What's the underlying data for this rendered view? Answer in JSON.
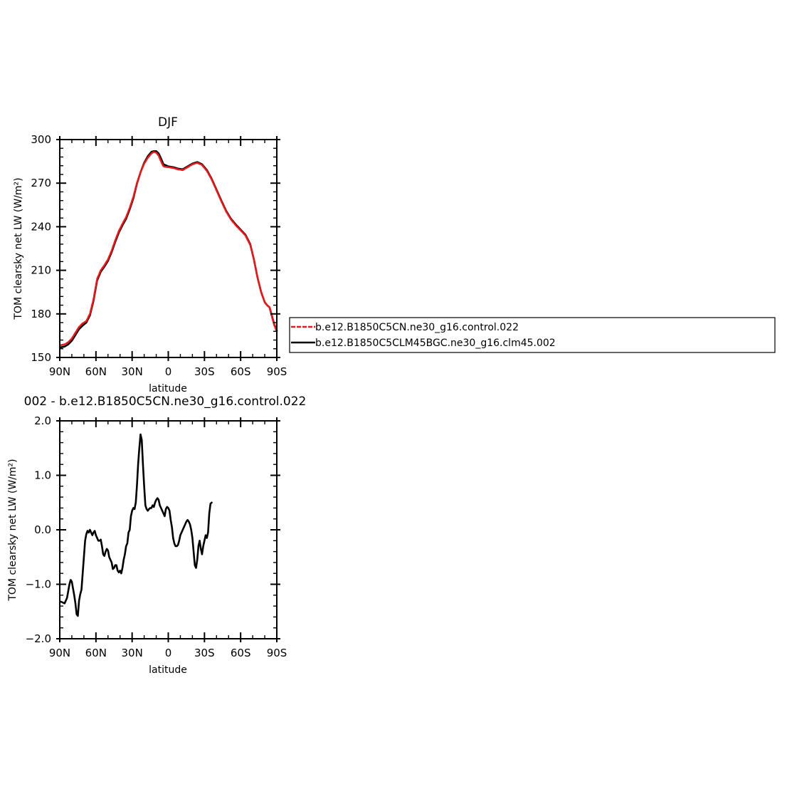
{
  "chart_data": [
    {
      "type": "line",
      "title": "DJF",
      "xlabel": "latitude",
      "ylabel": "TOM clearsky net LW (W/m²)",
      "xlim": [
        90,
        -90
      ],
      "ylim": [
        150,
        300
      ],
      "x_ticks": [
        90,
        60,
        30,
        0,
        -30,
        -60,
        -90
      ],
      "x_tick_labels": [
        "90N",
        "60N",
        "30N",
        "0",
        "30S",
        "60S",
        "90S"
      ],
      "y_ticks": [
        150,
        180,
        210,
        240,
        270,
        300
      ],
      "y_tick_labels": [
        "150",
        "180",
        "210",
        "240",
        "270",
        "300"
      ],
      "legend_position": "right",
      "series": [
        {
          "name": "b.e12.B1850C5CN.ne30_g16.control.022",
          "color": "#e8191c",
          "dash": "dashed",
          "points": [
            [
              89,
              158.5
            ],
            [
              86,
              159
            ],
            [
              83,
              160.5
            ],
            [
              80,
              163
            ],
            [
              77,
              167
            ],
            [
              74,
              171
            ],
            [
              71,
              173.5
            ],
            [
              68,
              175
            ],
            [
              65,
              180
            ],
            [
              62,
              190
            ],
            [
              59,
              204
            ],
            [
              56,
              210
            ],
            [
              53,
              213.5
            ],
            [
              50,
              217.5
            ],
            [
              47,
              223.5
            ],
            [
              44,
              230.5
            ],
            [
              41,
              237
            ],
            [
              38,
              242
            ],
            [
              35,
              246.5
            ],
            [
              32,
              253
            ],
            [
              29,
              260.5
            ],
            [
              26,
              270
            ],
            [
              23,
              277.5
            ],
            [
              20,
              283.5
            ],
            [
              17,
              287.5
            ],
            [
              14,
              290.5
            ],
            [
              12,
              291.5
            ],
            [
              10,
              291
            ],
            [
              8,
              289
            ],
            [
              6,
              285
            ],
            [
              4,
              281.5
            ],
            [
              0,
              281
            ],
            [
              -4,
              280.5
            ],
            [
              -8,
              279.5
            ],
            [
              -12,
              279
            ],
            [
              -16,
              281
            ],
            [
              -20,
              283
            ],
            [
              -24,
              284
            ],
            [
              -28,
              282.5
            ],
            [
              -32,
              278.5
            ],
            [
              -36,
              272.5
            ],
            [
              -40,
              265
            ],
            [
              -44,
              257.5
            ],
            [
              -48,
              250.5
            ],
            [
              -52,
              245
            ],
            [
              -56,
              241
            ],
            [
              -60,
              237.5
            ],
            [
              -64,
              234
            ],
            [
              -68,
              227.5
            ],
            [
              -71,
              217.5
            ],
            [
              -74,
              205
            ],
            [
              -77,
              195
            ],
            [
              -80,
              188
            ],
            [
              -82,
              186
            ],
            [
              -84,
              184.5
            ],
            [
              -86,
              178
            ],
            [
              -88,
              172
            ],
            [
              -90,
              168
            ]
          ]
        },
        {
          "name": "b.e12.B1850C5CLM45BGC.ne30_g16.clm45.002",
          "color": "#000000",
          "dash": "solid",
          "points": [
            [
              89,
              157
            ],
            [
              86,
              157.5
            ],
            [
              83,
              159
            ],
            [
              80,
              161.5
            ],
            [
              77,
              165.5
            ],
            [
              74,
              169.5
            ],
            [
              71,
              172
            ],
            [
              68,
              174
            ],
            [
              65,
              179
            ],
            [
              62,
              189
            ],
            [
              59,
              203
            ],
            [
              56,
              209
            ],
            [
              53,
              212.5
            ],
            [
              50,
              216.5
            ],
            [
              47,
              222.5
            ],
            [
              44,
              229.5
            ],
            [
              41,
              236
            ],
            [
              38,
              241
            ],
            [
              35,
              245.5
            ],
            [
              32,
              252
            ],
            [
              29,
              259.5
            ],
            [
              26,
              269.5
            ],
            [
              23,
              277.5
            ],
            [
              20,
              284
            ],
            [
              17,
              288.5
            ],
            [
              14,
              291.5
            ],
            [
              12,
              292
            ],
            [
              10,
              292
            ],
            [
              8,
              290.5
            ],
            [
              6,
              287
            ],
            [
              4,
              283
            ],
            [
              0,
              281.5
            ],
            [
              -4,
              281
            ],
            [
              -8,
              280
            ],
            [
              -12,
              279.5
            ],
            [
              -16,
              281.5
            ],
            [
              -20,
              283.5
            ],
            [
              -24,
              284.5
            ],
            [
              -28,
              283
            ],
            [
              -32,
              279
            ],
            [
              -36,
              273
            ],
            [
              -40,
              265.5
            ],
            [
              -44,
              258
            ],
            [
              -48,
              251
            ],
            [
              -52,
              245.5
            ],
            [
              -56,
              241.5
            ],
            [
              -60,
              238
            ],
            [
              -64,
              234.5
            ],
            [
              -68,
              228
            ],
            [
              -71,
              217.5
            ],
            [
              -74,
              205
            ],
            [
              -77,
              195
            ],
            [
              -80,
              188
            ],
            [
              -82,
              186
            ],
            [
              -84,
              184.5
            ],
            [
              -86,
              178.5
            ],
            [
              -88,
              172.5
            ],
            [
              -90,
              168.5
            ]
          ]
        }
      ]
    },
    {
      "type": "line",
      "title": "002 - b.e12.B1850C5CN.ne30_g16.control.022",
      "xlabel": "latitude",
      "ylabel": "TOM clearsky net LW (W/m²)",
      "xlim": [
        90,
        -90
      ],
      "ylim": [
        -2.0,
        2.0
      ],
      "x_ticks": [
        90,
        60,
        30,
        0,
        -30,
        -60,
        -90
      ],
      "x_tick_labels": [
        "90N",
        "60N",
        "30N",
        "0",
        "30S",
        "60S",
        "90S"
      ],
      "y_ticks": [
        -2.0,
        -1.0,
        0.0,
        1.0,
        2.0
      ],
      "y_tick_labels": [
        "−2.0",
        "−1.0",
        "0.0",
        "1.0",
        "2.0"
      ],
      "series": [
        {
          "color": "#000000",
          "points": [
            [
              89,
              -1.32
            ],
            [
              86,
              -1.35
            ],
            [
              84,
              -1.25
            ],
            [
              82,
              -1.0
            ],
            [
              81,
              -0.92
            ],
            [
              80,
              -0.95
            ],
            [
              78,
              -1.2
            ],
            [
              77,
              -1.35
            ],
            [
              76,
              -1.55
            ],
            [
              75,
              -1.58
            ],
            [
              74,
              -1.3
            ],
            [
              73,
              -1.18
            ],
            [
              72,
              -1.1
            ],
            [
              71,
              -0.8
            ],
            [
              70,
              -0.5
            ],
            [
              69,
              -0.2
            ],
            [
              68,
              -0.08
            ],
            [
              67,
              -0.02
            ],
            [
              66,
              -0.05
            ],
            [
              65,
              0.0
            ],
            [
              64,
              -0.05
            ],
            [
              63,
              -0.1
            ],
            [
              62,
              -0.05
            ],
            [
              61,
              -0.02
            ],
            [
              60,
              -0.1
            ],
            [
              59,
              -0.15
            ],
            [
              58,
              -0.2
            ],
            [
              57,
              -0.2
            ],
            [
              56,
              -0.18
            ],
            [
              55,
              -0.3
            ],
            [
              54,
              -0.45
            ],
            [
              53,
              -0.48
            ],
            [
              52,
              -0.4
            ],
            [
              51,
              -0.35
            ],
            [
              50,
              -0.38
            ],
            [
              49,
              -0.5
            ],
            [
              48,
              -0.55
            ],
            [
              47,
              -0.6
            ],
            [
              46,
              -0.72
            ],
            [
              45,
              -0.7
            ],
            [
              44,
              -0.65
            ],
            [
              43,
              -0.65
            ],
            [
              42,
              -0.75
            ],
            [
              41,
              -0.78
            ],
            [
              40,
              -0.75
            ],
            [
              39,
              -0.8
            ],
            [
              38,
              -0.7
            ],
            [
              37,
              -0.55
            ],
            [
              36,
              -0.45
            ],
            [
              35,
              -0.3
            ],
            [
              34,
              -0.25
            ],
            [
              33,
              -0.05
            ],
            [
              32,
              0.0
            ],
            [
              31,
              0.25
            ],
            [
              30,
              0.35
            ],
            [
              29,
              0.4
            ],
            [
              28,
              0.38
            ],
            [
              27,
              0.5
            ],
            [
              26,
              0.8
            ],
            [
              25,
              1.2
            ],
            [
              24,
              1.5
            ],
            [
              23,
              1.75
            ],
            [
              22,
              1.65
            ],
            [
              21,
              1.2
            ],
            [
              20,
              0.8
            ],
            [
              19,
              0.45
            ],
            [
              18,
              0.38
            ],
            [
              17,
              0.35
            ],
            [
              16,
              0.38
            ],
            [
              15,
              0.4
            ],
            [
              14,
              0.4
            ],
            [
              13,
              0.45
            ],
            [
              12,
              0.42
            ],
            [
              11,
              0.5
            ],
            [
              10,
              0.55
            ],
            [
              9,
              0.58
            ],
            [
              8,
              0.55
            ],
            [
              7,
              0.45
            ],
            [
              6,
              0.4
            ],
            [
              5,
              0.35
            ],
            [
              4,
              0.3
            ],
            [
              3,
              0.25
            ],
            [
              2,
              0.38
            ],
            [
              1,
              0.42
            ],
            [
              0,
              0.4
            ],
            [
              -1,
              0.35
            ],
            [
              -2,
              0.18
            ],
            [
              -3,
              0.05
            ],
            [
              -4,
              -0.15
            ],
            [
              -5,
              -0.25
            ],
            [
              -6,
              -0.3
            ],
            [
              -7,
              -0.3
            ],
            [
              -8,
              -0.28
            ],
            [
              -9,
              -0.2
            ],
            [
              -10,
              -0.1
            ],
            [
              -11,
              -0.05
            ],
            [
              -12,
              0.0
            ],
            [
              -13,
              0.05
            ],
            [
              -14,
              0.1
            ],
            [
              -15,
              0.15
            ],
            [
              -16,
              0.18
            ],
            [
              -17,
              0.15
            ],
            [
              -18,
              0.1
            ],
            [
              -19,
              0.0
            ],
            [
              -20,
              -0.15
            ],
            [
              -21,
              -0.4
            ],
            [
              -22,
              -0.65
            ],
            [
              -23,
              -0.7
            ],
            [
              -24,
              -0.55
            ],
            [
              -25,
              -0.3
            ],
            [
              -26,
              -0.2
            ],
            [
              -27,
              -0.35
            ],
            [
              -28,
              -0.45
            ],
            [
              -29,
              -0.3
            ],
            [
              -30,
              -0.2
            ],
            [
              -31,
              -0.1
            ],
            [
              -32,
              -0.15
            ],
            [
              -33,
              -0.05
            ],
            [
              -34,
              0.3
            ],
            [
              -35,
              0.48
            ],
            [
              -36,
              0.5
            ]
          ]
        }
      ]
    }
  ]
}
